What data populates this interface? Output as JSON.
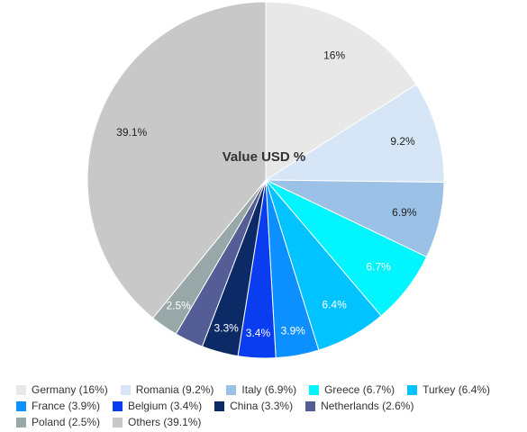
{
  "chart_data": {
    "type": "pie",
    "title": "Value USD %",
    "slices": [
      {
        "name": "Germany",
        "value": 16,
        "label": "16%",
        "legend": "Germany (16%)",
        "color": "#e8e8e8",
        "label_color": "#222222"
      },
      {
        "name": "Romania",
        "value": 9.2,
        "label": "9.2%",
        "legend": "Romania (9.2%)",
        "color": "#d6e6f7",
        "label_color": "#222222"
      },
      {
        "name": "Italy",
        "value": 6.9,
        "label": "6.9%",
        "legend": "Italy (6.9%)",
        "color": "#9bc2e6",
        "label_color": "#222222"
      },
      {
        "name": "Greece",
        "value": 6.7,
        "label": "6.7%",
        "legend": "Greece (6.7%)",
        "color": "#00f5ff",
        "label_color": "#ffffff"
      },
      {
        "name": "Turkey",
        "value": 6.4,
        "label": "6.4%",
        "legend": "Turkey (6.4%)",
        "color": "#00c3ff",
        "label_color": "#ffffff"
      },
      {
        "name": "France",
        "value": 3.9,
        "label": "3.9%",
        "legend": "France (3.9%)",
        "color": "#0c8fff",
        "label_color": "#ffffff"
      },
      {
        "name": "Belgium",
        "value": 3.4,
        "label": "3.4%",
        "legend": "Belgium (3.4%)",
        "color": "#0a3cf0",
        "label_color": "#ffffff"
      },
      {
        "name": "China",
        "value": 3.3,
        "label": "3.3%",
        "legend": "China (3.3%)",
        "color": "#0b2a66",
        "label_color": "#ffffff"
      },
      {
        "name": "Netherlands",
        "value": 2.6,
        "label": "",
        "legend": "Netherlands (2.6%)",
        "color": "#545d96",
        "label_color": "#ffffff"
      },
      {
        "name": "Poland",
        "value": 2.5,
        "label": "2.5%",
        "legend": "Poland (2.5%)",
        "color": "#98a7a7",
        "label_color": "#ffffff"
      },
      {
        "name": "Others",
        "value": 39.1,
        "label": "39.1%",
        "legend": "Others (39.1%)",
        "color": "#c8c8c8",
        "label_color": "#222222"
      }
    ],
    "legend_position": "bottom"
  }
}
